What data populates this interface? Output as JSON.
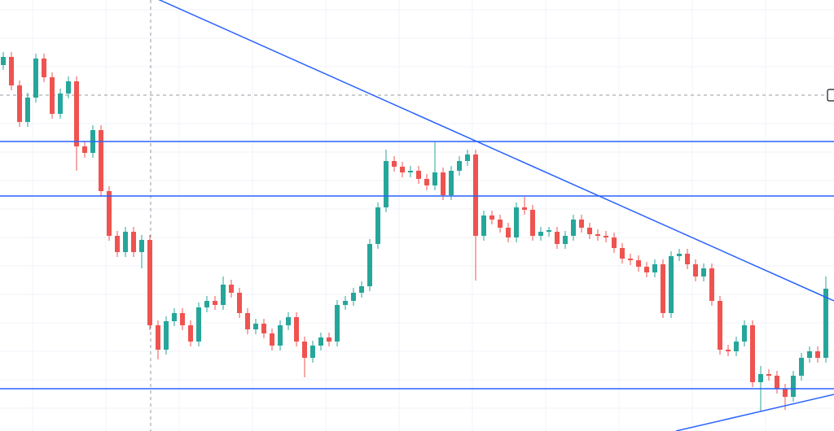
{
  "chart_data": {
    "type": "candlestick",
    "up_color": "#26a69a",
    "down_color": "#ef5350",
    "line_color": "#2962ff",
    "crosshair_color": "#9598a1",
    "xlim": [
      -0.4,
      102
    ],
    "ylim": [
      0,
      530
    ],
    "open": [
      450,
      460,
      425,
      380,
      410,
      458,
      435,
      390,
      415,
      430,
      350,
      342,
      370,
      295,
      240,
      220,
      245,
      220,
      235,
      130,
      100,
      135,
      145,
      130,
      110,
      152,
      160,
      155,
      180,
      170,
      145,
      125,
      132,
      120,
      105,
      130,
      140,
      110,
      90,
      105,
      115,
      110,
      155,
      160,
      170,
      178,
      230,
      275,
      332,
      325,
      318,
      320,
      310,
      302,
      318,
      290,
      320,
      332,
      340,
      240,
      265,
      260,
      250,
      238,
      275,
      272,
      240,
      245,
      245,
      230,
      240,
      260,
      250,
      242,
      240,
      238,
      225,
      212,
      210,
      202,
      195,
      205,
      145,
      215,
      218,
      205,
      190,
      200,
      160,
      100,
      98,
      110,
      130,
      60,
      70,
      68,
      52,
      42,
      68,
      90,
      98,
      90
    ],
    "high": [
      466,
      466,
      431,
      416,
      464,
      464,
      441,
      421,
      436,
      436,
      356,
      376,
      376,
      301,
      246,
      251,
      251,
      241,
      241,
      136,
      141,
      151,
      151,
      136,
      158,
      166,
      166,
      190,
      186,
      176,
      151,
      138,
      138,
      126,
      136,
      146,
      146,
      116,
      111,
      121,
      121,
      161,
      166,
      176,
      184,
      236,
      281,
      346,
      338,
      331,
      326,
      326,
      316,
      355,
      324,
      326,
      338,
      346,
      346,
      271,
      271,
      266,
      256,
      281,
      288,
      278,
      251,
      251,
      251,
      246,
      266,
      266,
      256,
      248,
      246,
      244,
      231,
      218,
      216,
      208,
      211,
      211,
      221,
      224,
      224,
      211,
      206,
      206,
      166,
      106,
      116,
      136,
      136,
      80,
      76,
      74,
      58,
      74,
      96,
      104,
      104,
      190
    ],
    "low": [
      444,
      419,
      374,
      374,
      404,
      429,
      384,
      384,
      409,
      320,
      336,
      336,
      289,
      234,
      214,
      214,
      214,
      200,
      124,
      88,
      94,
      129,
      124,
      104,
      104,
      146,
      149,
      149,
      164,
      139,
      119,
      119,
      114,
      99,
      99,
      124,
      104,
      66,
      84,
      99,
      104,
      104,
      149,
      154,
      164,
      172,
      224,
      269,
      319,
      312,
      312,
      304,
      296,
      296,
      284,
      284,
      314,
      326,
      185,
      234,
      254,
      244,
      232,
      232,
      266,
      234,
      234,
      239,
      224,
      224,
      234,
      244,
      236,
      234,
      232,
      219,
      206,
      204,
      196,
      189,
      189,
      139,
      139,
      209,
      199,
      184,
      184,
      154,
      94,
      92,
      92,
      104,
      54,
      24,
      62,
      46,
      26,
      36,
      62,
      84,
      84,
      84
    ],
    "close": [
      460,
      425,
      380,
      410,
      458,
      435,
      390,
      415,
      430,
      350,
      342,
      370,
      295,
      240,
      220,
      245,
      220,
      235,
      130,
      100,
      135,
      145,
      130,
      110,
      152,
      160,
      155,
      180,
      170,
      145,
      125,
      132,
      120,
      105,
      130,
      140,
      110,
      90,
      105,
      115,
      110,
      155,
      160,
      170,
      178,
      230,
      275,
      332,
      325,
      318,
      320,
      310,
      302,
      318,
      290,
      320,
      332,
      340,
      240,
      265,
      260,
      250,
      238,
      275,
      272,
      240,
      245,
      247,
      230,
      240,
      260,
      250,
      242,
      240,
      238,
      225,
      212,
      210,
      202,
      195,
      205,
      145,
      215,
      218,
      205,
      190,
      200,
      160,
      100,
      98,
      110,
      130,
      60,
      70,
      68,
      52,
      42,
      68,
      90,
      98,
      90,
      175
    ],
    "hlines": [
      356,
      289,
      52
    ],
    "trendlines": [
      {
        "x": [
          18.1,
          102
        ],
        "y": [
          535,
          160
        ]
      },
      {
        "x": [
          82.6,
          102
        ],
        "y": [
          0,
          45
        ]
      }
    ],
    "crosshair": {
      "x": 18.1,
      "y": 413
    }
  }
}
